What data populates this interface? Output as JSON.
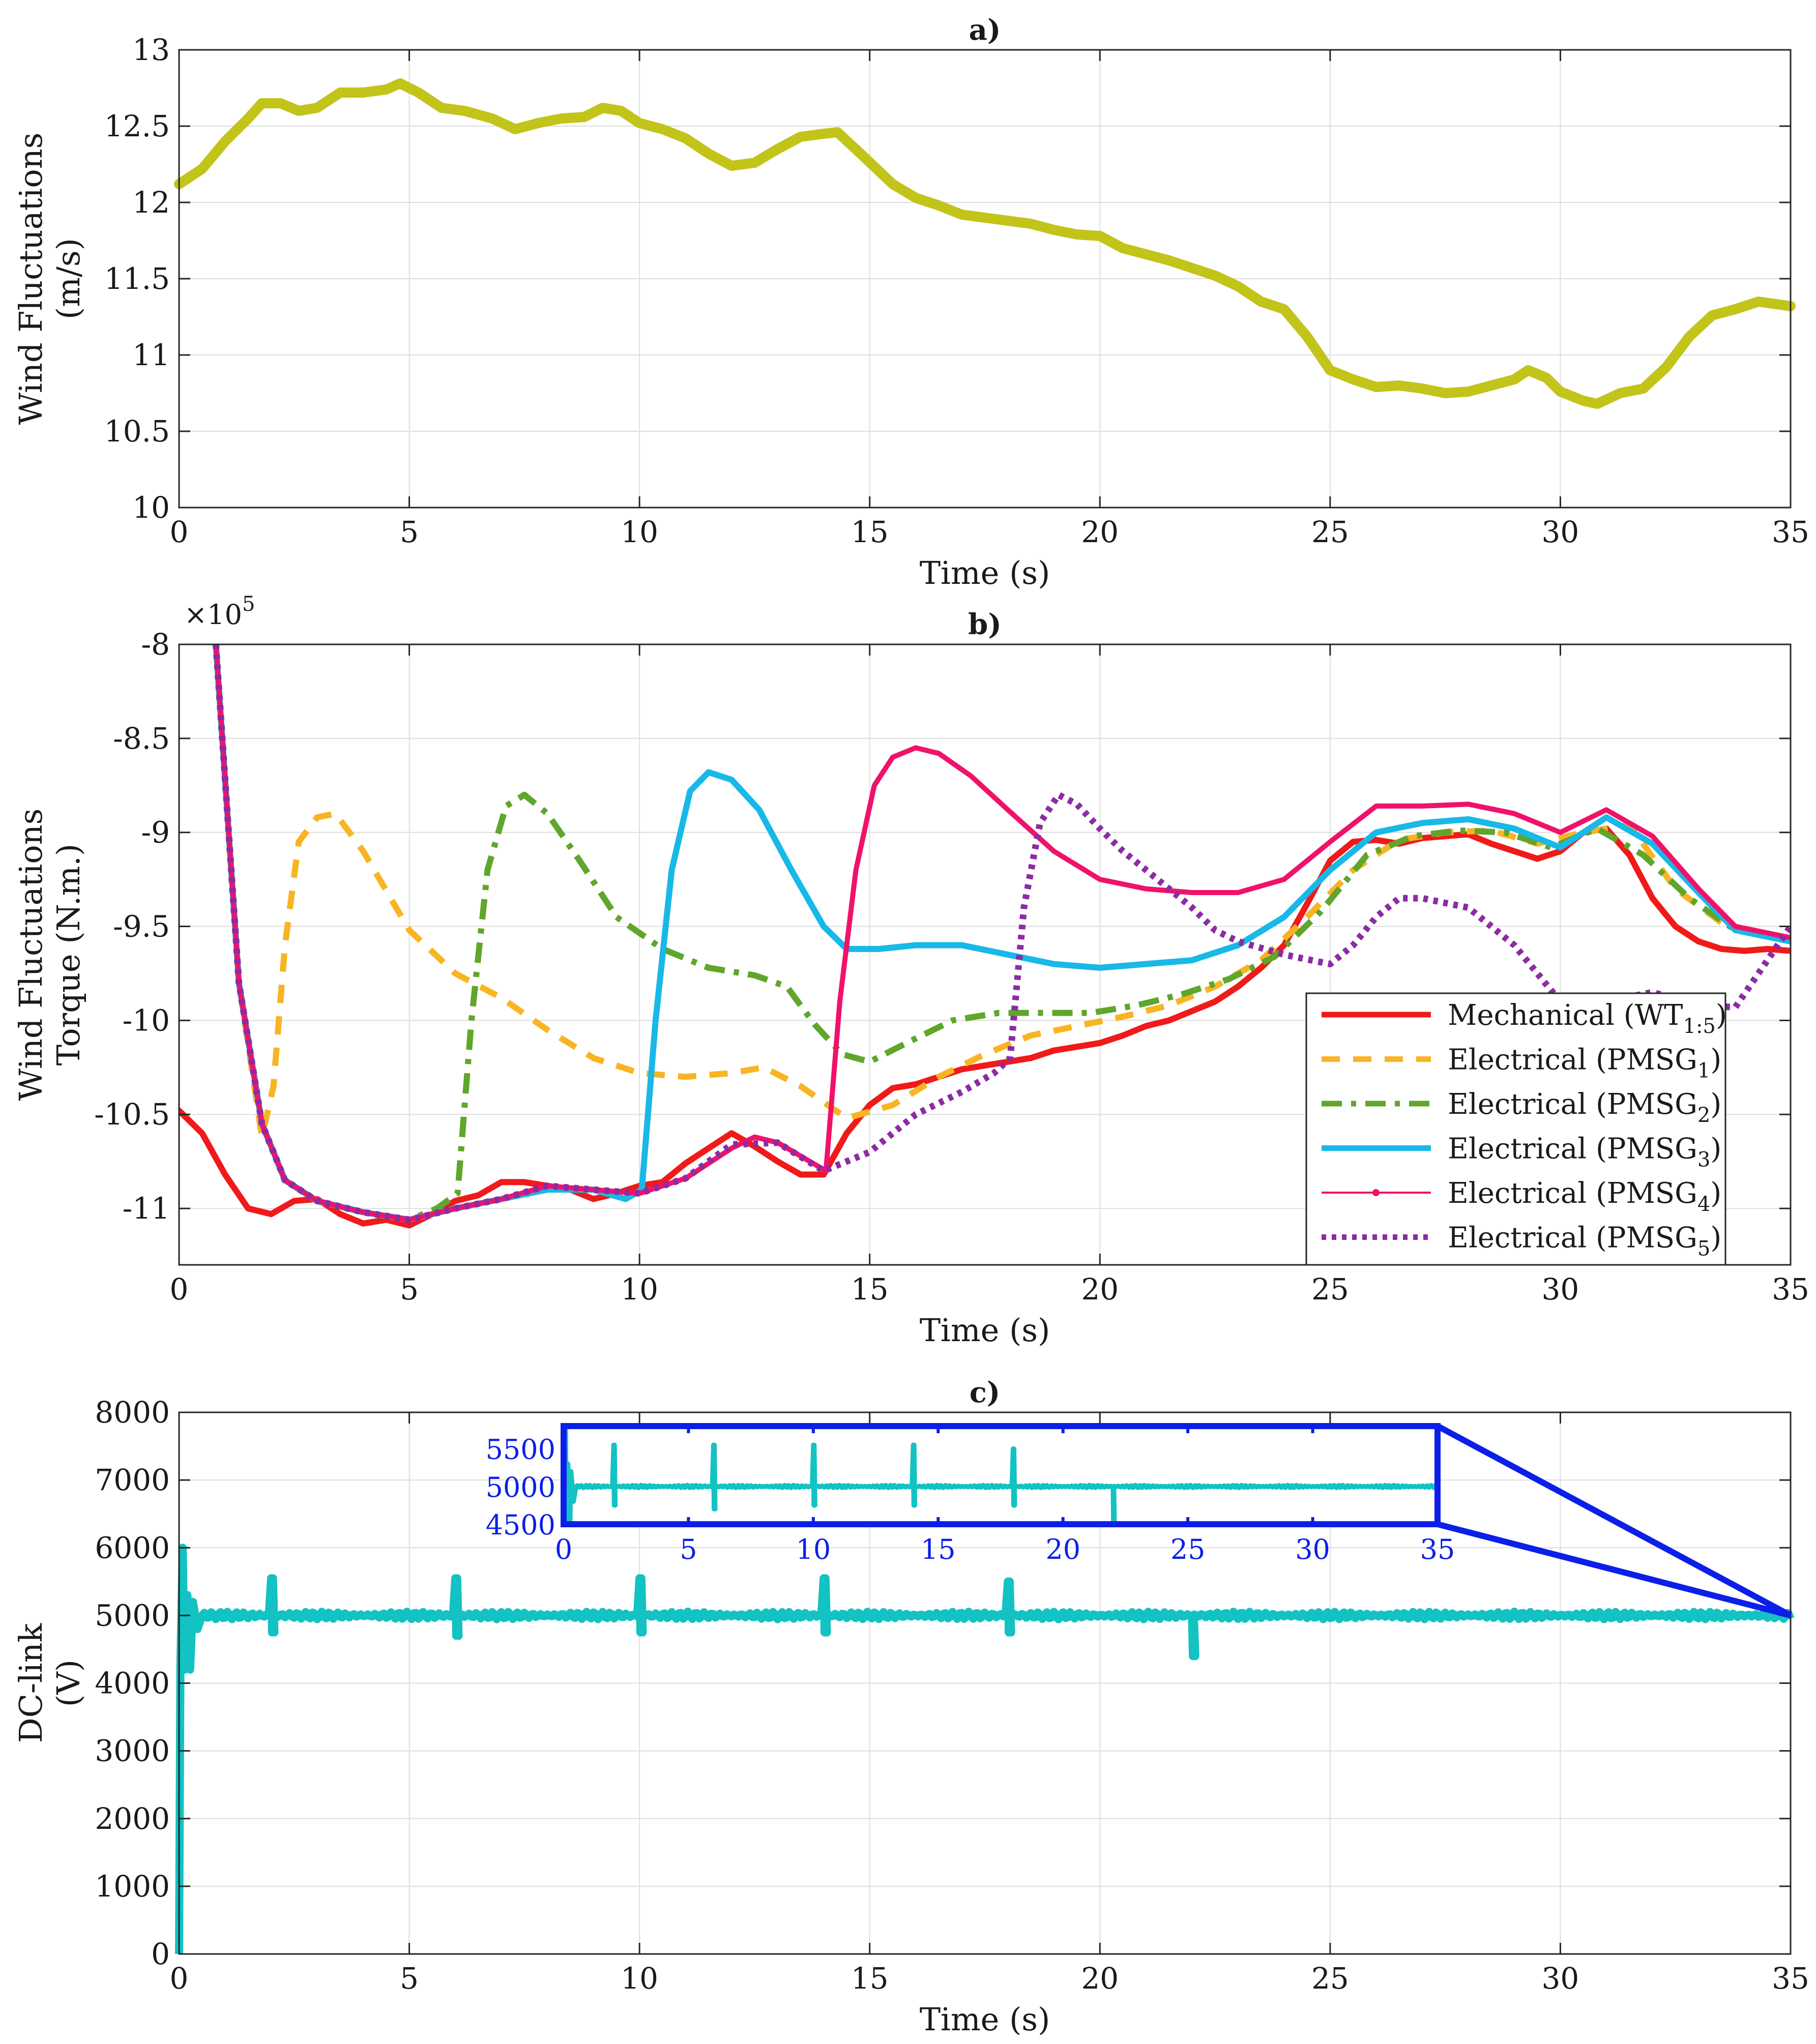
{
  "chart_data": [
    {
      "id": "a",
      "type": "line",
      "title": "a)",
      "xlabel": "Time (s)",
      "ylabel_lines": [
        "Wind Fluctuations",
        "(m/s)"
      ],
      "xlim": [
        0,
        35
      ],
      "ylim": [
        10,
        13
      ],
      "xticks": [
        0,
        5,
        10,
        15,
        20,
        25,
        30,
        35
      ],
      "xtick_labels": [
        "0",
        "5",
        "10",
        "15",
        "20",
        "25",
        "30",
        "35"
      ],
      "yticks": [
        10,
        10.5,
        11,
        11.5,
        12,
        12.5,
        13
      ],
      "ytick_labels": [
        "10",
        "10.5",
        "11",
        "11.5",
        "12",
        "12.5",
        "13"
      ],
      "grid": true,
      "series": [
        {
          "color": "#c2c41a",
          "x": [
            0,
            0.5,
            1,
            1.5,
            1.8,
            2.2,
            2.6,
            3,
            3.5,
            4,
            4.5,
            4.8,
            5.2,
            5.7,
            6.2,
            6.8,
            7.3,
            7.8,
            8.3,
            8.8,
            9.2,
            9.6,
            10,
            10.5,
            11,
            11.5,
            12,
            12.5,
            13,
            13.5,
            14,
            14.3,
            14.8,
            15.5,
            16,
            16.5,
            17,
            17.5,
            18,
            18.5,
            19,
            19.5,
            20,
            20.5,
            21,
            21.5,
            22,
            22.5,
            23,
            23.5,
            24,
            24.5,
            25,
            25.5,
            26,
            26.5,
            27,
            27.5,
            28,
            28.5,
            29,
            29.3,
            29.7,
            30,
            30.5,
            30.8,
            31.3,
            31.8,
            32.3,
            32.8,
            33.3,
            33.8,
            34.3,
            35
          ],
          "y": [
            12.12,
            12.22,
            12.4,
            12.55,
            12.65,
            12.65,
            12.6,
            12.62,
            12.72,
            12.72,
            12.74,
            12.78,
            12.72,
            12.62,
            12.6,
            12.55,
            12.48,
            12.52,
            12.55,
            12.56,
            12.62,
            12.6,
            12.52,
            12.48,
            12.42,
            12.32,
            12.24,
            12.26,
            12.35,
            12.43,
            12.45,
            12.46,
            12.32,
            12.12,
            12.03,
            11.98,
            11.92,
            11.9,
            11.88,
            11.86,
            11.82,
            11.79,
            11.78,
            11.7,
            11.66,
            11.62,
            11.57,
            11.52,
            11.45,
            11.35,
            11.3,
            11.12,
            10.9,
            10.84,
            10.79,
            10.8,
            10.78,
            10.75,
            10.76,
            10.8,
            10.84,
            10.9,
            10.85,
            10.76,
            10.7,
            10.68,
            10.75,
            10.78,
            10.92,
            11.12,
            11.26,
            11.3,
            11.35,
            11.32
          ]
        }
      ]
    },
    {
      "id": "b",
      "type": "line",
      "title": "b)",
      "xlabel": "Time (s)",
      "ylabel_lines": [
        "Wind Fluctuations",
        "Torque (N.m.)"
      ],
      "multiplier": "×10",
      "multiplier_exp": "5",
      "xlim": [
        0,
        35
      ],
      "ylim": [
        -11.3,
        -8
      ],
      "xticks": [
        0,
        5,
        10,
        15,
        20,
        25,
        30,
        35
      ],
      "xtick_labels": [
        "0",
        "5",
        "10",
        "15",
        "20",
        "25",
        "30",
        "35"
      ],
      "yticks": [
        -11,
        -10.5,
        -10,
        -9.5,
        -9,
        -8.5,
        -8
      ],
      "ytick_labels": [
        "-11",
        "-10.5",
        "-10",
        "-9.5",
        "-9",
        "-8.5",
        "-8"
      ],
      "grid": true,
      "legend": "bottom-right",
      "series": [
        {
          "name": "Mechanical (WT",
          "sub": "1:5",
          "suffix": ")",
          "color": "#f01a1a",
          "style": "solid",
          "x": [
            0,
            0.5,
            1,
            1.5,
            2,
            2.5,
            3,
            3.5,
            4,
            4.5,
            5,
            5.5,
            6,
            6.5,
            7,
            7.5,
            8,
            8.5,
            9,
            9.5,
            10,
            10.5,
            11,
            11.5,
            12,
            12.5,
            13,
            13.5,
            14,
            14.5,
            15,
            15.5,
            16,
            16.5,
            17,
            17.5,
            18,
            18.5,
            19,
            19.5,
            20,
            20.5,
            21,
            21.5,
            22,
            22.5,
            23,
            23.5,
            24,
            24.5,
            25,
            25.5,
            26,
            26.5,
            27,
            27.5,
            28,
            28.5,
            29,
            29.5,
            30,
            30.5,
            31,
            31.5,
            32,
            32.5,
            33,
            33.5,
            34,
            34.5,
            35
          ],
          "y": [
            -10.48,
            -10.6,
            -10.82,
            -11.0,
            -11.03,
            -10.96,
            -10.95,
            -11.03,
            -11.08,
            -11.06,
            -11.09,
            -11.03,
            -10.96,
            -10.93,
            -10.86,
            -10.86,
            -10.88,
            -10.9,
            -10.95,
            -10.92,
            -10.88,
            -10.86,
            -10.76,
            -10.68,
            -10.6,
            -10.67,
            -10.75,
            -10.82,
            -10.82,
            -10.6,
            -10.45,
            -10.36,
            -10.34,
            -10.3,
            -10.26,
            -10.24,
            -10.22,
            -10.2,
            -10.16,
            -10.14,
            -10.12,
            -10.08,
            -10.03,
            -10.0,
            -9.95,
            -9.9,
            -9.82,
            -9.72,
            -9.6,
            -9.38,
            -9.15,
            -9.05,
            -9.04,
            -9.06,
            -9.03,
            -9.02,
            -9.01,
            -9.06,
            -9.1,
            -9.14,
            -9.1,
            -9.0,
            -8.98,
            -9.12,
            -9.35,
            -9.5,
            -9.58,
            -9.62,
            -9.63,
            -9.62,
            -9.63
          ]
        },
        {
          "name": "Electrical (PMSG",
          "sub": "1",
          "suffix": ")",
          "color": "#f9b423",
          "style": "dashed",
          "x": [
            0.8,
            1.3,
            1.8,
            2.05,
            2.3,
            2.6,
            3,
            3.4,
            4,
            5,
            6,
            7,
            8,
            9,
            10,
            11,
            12,
            12.7,
            13.5,
            14.5,
            15.5,
            16.5,
            17.5,
            18.5,
            19.5,
            20.5,
            21.5,
            22.5,
            23.5,
            24.5,
            25.5,
            26.5,
            27.5,
            28.5,
            29.5,
            30.5,
            31.5,
            32.5,
            33.5,
            34.5,
            35
          ],
          "y": [
            -8.0,
            -9.8,
            -10.62,
            -10.35,
            -9.6,
            -9.05,
            -8.92,
            -8.9,
            -9.1,
            -9.52,
            -9.75,
            -9.88,
            -10.05,
            -10.2,
            -10.28,
            -10.3,
            -10.28,
            -10.25,
            -10.35,
            -10.52,
            -10.45,
            -10.3,
            -10.18,
            -10.08,
            -10.03,
            -9.98,
            -9.92,
            -9.82,
            -9.68,
            -9.45,
            -9.2,
            -9.04,
            -9.0,
            -8.99,
            -9.06,
            -9.0,
            -8.96,
            -9.3,
            -9.48,
            -9.55,
            -9.57
          ]
        },
        {
          "name": "Electrical (PMSG",
          "sub": "2",
          "suffix": ")",
          "color": "#5fa62b",
          "style": "dashdot",
          "x": [
            0.8,
            1.3,
            1.8,
            2.3,
            3,
            4,
            5,
            5.6,
            6.05,
            6.35,
            6.7,
            7.1,
            7.5,
            8,
            8.7,
            9.5,
            10.5,
            11.5,
            12.5,
            13.2,
            13.8,
            14.4,
            15,
            15.8,
            16.8,
            17.8,
            18.8,
            19.8,
            20.8,
            21.8,
            22.8,
            23.8,
            24.8,
            25.8,
            26.8,
            27.8,
            28.8,
            29.8,
            30.8,
            31.8,
            32.8,
            33.8,
            35
          ],
          "y": [
            -8.0,
            -9.8,
            -10.55,
            -10.85,
            -10.96,
            -11.02,
            -11.06,
            -11.0,
            -10.92,
            -10.0,
            -9.2,
            -8.86,
            -8.8,
            -8.9,
            -9.15,
            -9.45,
            -9.62,
            -9.72,
            -9.76,
            -9.82,
            -10.02,
            -10.18,
            -10.22,
            -10.12,
            -10.0,
            -9.96,
            -9.96,
            -9.96,
            -9.92,
            -9.86,
            -9.78,
            -9.66,
            -9.42,
            -9.12,
            -9.02,
            -8.99,
            -9.0,
            -9.08,
            -8.98,
            -9.12,
            -9.35,
            -9.52,
            -9.57
          ]
        },
        {
          "name": "Electrical (PMSG",
          "sub": "3",
          "suffix": ")",
          "color": "#18b8e8",
          "style": "solid",
          "x": [
            0.8,
            1.3,
            1.8,
            2.3,
            3,
            4,
            5,
            6,
            7,
            8,
            9,
            9.7,
            10.05,
            10.35,
            10.7,
            11.1,
            11.5,
            12,
            12.6,
            13.3,
            14,
            14.5,
            15.2,
            16,
            17,
            18,
            19,
            20,
            21,
            22,
            23,
            24,
            25,
            26,
            27,
            28,
            29,
            30,
            31,
            32,
            33,
            33.8,
            35
          ],
          "y": [
            -8.0,
            -9.8,
            -10.55,
            -10.85,
            -10.96,
            -11.02,
            -11.06,
            -11.0,
            -10.95,
            -10.9,
            -10.9,
            -10.95,
            -10.9,
            -10.0,
            -9.2,
            -8.78,
            -8.68,
            -8.72,
            -8.88,
            -9.2,
            -9.5,
            -9.62,
            -9.62,
            -9.6,
            -9.6,
            -9.65,
            -9.7,
            -9.72,
            -9.7,
            -9.68,
            -9.6,
            -9.45,
            -9.2,
            -9.0,
            -8.95,
            -8.93,
            -8.98,
            -9.08,
            -8.92,
            -9.06,
            -9.32,
            -9.52,
            -9.58
          ]
        },
        {
          "name": "Electrical (PMSG",
          "sub": "4",
          "suffix": ")",
          "color": "#f0126a",
          "style": "solid",
          "x": [
            0.8,
            1.3,
            1.8,
            2.3,
            3,
            4,
            5,
            6,
            7,
            8,
            9,
            10,
            11,
            12,
            12.5,
            13,
            13.7,
            14.05,
            14.35,
            14.7,
            15.1,
            15.5,
            16,
            16.5,
            17.2,
            18,
            19,
            20,
            21,
            22,
            23,
            24,
            25,
            26,
            27,
            28,
            29,
            30,
            31,
            32,
            33,
            33.8,
            35
          ],
          "y": [
            -8.0,
            -9.8,
            -10.55,
            -10.85,
            -10.96,
            -11.02,
            -11.06,
            -11.0,
            -10.95,
            -10.88,
            -10.9,
            -10.92,
            -10.84,
            -10.68,
            -10.62,
            -10.65,
            -10.75,
            -10.8,
            -9.9,
            -9.2,
            -8.75,
            -8.6,
            -8.55,
            -8.58,
            -8.7,
            -8.88,
            -9.1,
            -9.25,
            -9.3,
            -9.32,
            -9.32,
            -9.25,
            -9.05,
            -8.86,
            -8.86,
            -8.85,
            -8.9,
            -9.0,
            -8.88,
            -9.02,
            -9.3,
            -9.5,
            -9.56
          ]
        },
        {
          "name": "Electrical (PMSG",
          "sub": "5",
          "suffix": ")",
          "color": "#8c2ba3",
          "style": "dotted",
          "x": [
            0.8,
            1.3,
            1.8,
            2.3,
            3,
            4,
            5,
            6,
            7,
            8,
            9,
            10,
            11,
            12,
            13,
            14,
            15,
            16,
            17,
            17.7,
            18.05,
            18.35,
            18.7,
            19.1,
            19.5,
            20,
            20.5,
            21,
            21.5,
            22,
            22.5,
            23,
            24,
            25,
            25.5,
            26,
            26.5,
            27,
            28,
            29,
            30,
            31,
            32,
            33,
            33.8,
            35
          ],
          "y": [
            -8.0,
            -9.8,
            -10.55,
            -10.85,
            -10.96,
            -11.02,
            -11.06,
            -11.0,
            -10.95,
            -10.88,
            -10.9,
            -10.92,
            -10.84,
            -10.66,
            -10.65,
            -10.8,
            -10.7,
            -10.5,
            -10.38,
            -10.28,
            -10.2,
            -9.4,
            -8.95,
            -8.8,
            -8.85,
            -8.98,
            -9.1,
            -9.2,
            -9.3,
            -9.4,
            -9.52,
            -9.58,
            -9.65,
            -9.7,
            -9.6,
            -9.45,
            -9.35,
            -9.35,
            -9.4,
            -9.6,
            -9.9,
            -9.9,
            -9.85,
            -9.92,
            -9.93,
            -9.5
          ]
        }
      ]
    },
    {
      "id": "c",
      "type": "line",
      "title": "c)",
      "xlabel": "Time (s)",
      "ylabel_lines": [
        "DC-link",
        "(V)"
      ],
      "xlim": [
        0,
        35
      ],
      "ylim": [
        0,
        8000
      ],
      "xticks": [
        0,
        5,
        10,
        15,
        20,
        25,
        30,
        35
      ],
      "xtick_labels": [
        "0",
        "5",
        "10",
        "15",
        "20",
        "25",
        "30",
        "35"
      ],
      "yticks": [
        0,
        1000,
        2000,
        3000,
        4000,
        5000,
        6000,
        7000,
        8000
      ],
      "ytick_labels": [
        "0",
        "1000",
        "2000",
        "3000",
        "4000",
        "5000",
        "6000",
        "7000",
        "8000"
      ],
      "grid": true,
      "series": [
        {
          "color": "#13c2c2",
          "nominal": 5000,
          "startup": [
            [
              0,
              0
            ],
            [
              0.03,
              4300
            ],
            [
              0.08,
              6000
            ],
            [
              0.12,
              4200
            ],
            [
              0.18,
              5300
            ],
            [
              0.24,
              4200
            ],
            [
              0.3,
              5200
            ],
            [
              0.4,
              4800
            ],
            [
              0.5,
              5000
            ]
          ],
          "spikes": [
            {
              "t": 2,
              "high": 5550,
              "low": 4750
            },
            {
              "t": 6,
              "high": 5550,
              "low": 4700
            },
            {
              "t": 10,
              "high": 5550,
              "low": 4750
            },
            {
              "t": 14,
              "high": 5550,
              "low": 4750
            },
            {
              "t": 18,
              "high": 5500,
              "low": 4750
            },
            {
              "t": 22,
              "high": 5000,
              "low": 4400
            }
          ]
        }
      ],
      "inset": {
        "color": "#0b1fe8",
        "xlim": [
          0,
          35
        ],
        "ylim": [
          4500,
          5800
        ],
        "xticks": [
          0,
          5,
          10,
          15,
          20,
          25,
          30,
          35
        ],
        "xtick_labels": [
          "0",
          "5",
          "10",
          "15",
          "20",
          "25",
          "30",
          "35"
        ],
        "yticks": [
          4500,
          5000,
          5500
        ],
        "ytick_labels": [
          "4500",
          "5000",
          "5500"
        ]
      }
    }
  ]
}
